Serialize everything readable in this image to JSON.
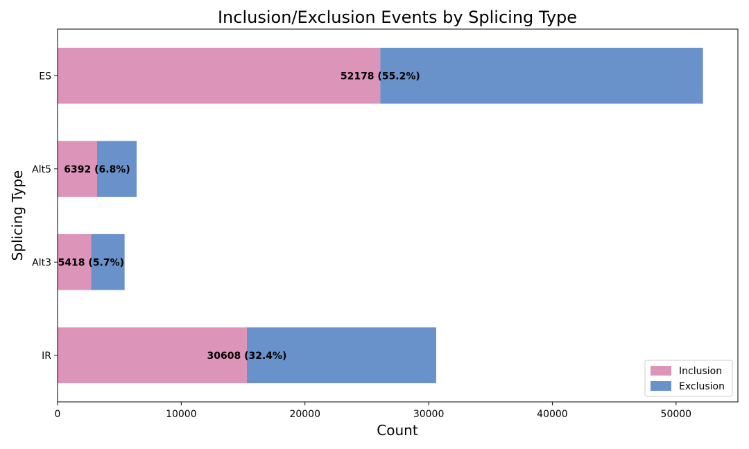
{
  "chart_data": {
    "type": "bar",
    "orientation": "horizontal",
    "stacked": true,
    "title": "Inclusion/Exclusion Events by Splicing Type",
    "xlabel": "Count",
    "ylabel": "Splicing Type",
    "xlim": [
      0,
      55000
    ],
    "xticks": [
      0,
      10000,
      20000,
      30000,
      40000,
      50000
    ],
    "xtick_labels": [
      "0",
      "10000",
      "20000",
      "30000",
      "40000",
      "50000"
    ],
    "categories": [
      "ES",
      "Alt5",
      "Alt3",
      "IR"
    ],
    "series": [
      {
        "name": "Inclusion",
        "color": "#dd94b9",
        "values": [
          26089,
          3196,
          2709,
          15304
        ]
      },
      {
        "name": "Exclusion",
        "color": "#6a92ca",
        "values": [
          26089,
          3196,
          2709,
          15304
        ]
      }
    ],
    "totals": [
      52178,
      6392,
      5418,
      30608
    ],
    "bar_labels": [
      "52178 (55.2%)",
      "6392 (6.8%)",
      "5418 (5.7%)",
      "30608 (32.4%)"
    ],
    "legend": {
      "position": "lower-right",
      "entries": [
        "Inclusion",
        "Exclusion"
      ]
    },
    "grid": false
  }
}
